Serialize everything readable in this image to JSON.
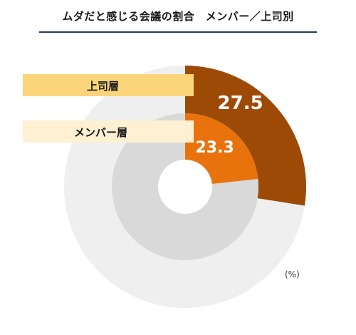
{
  "title": "ムダだと感じる会議の割合　メンバー／上司別",
  "unit": "(%)",
  "colors": {
    "manager": "#9e4a07",
    "member": "#e8720c",
    "outer_remainder": "#efefef",
    "inner_remainder": "#d9d9d9",
    "manager_label_bg": "#fcd47a",
    "member_label_bg": "#fef0d2"
  },
  "chart_data": {
    "type": "pie",
    "subtype": "nested-donut",
    "title": "ムダだと感じる会議の割合　メンバー／上司別",
    "unit": "%",
    "series": [
      {
        "name": "上司層",
        "ring": "outer",
        "value": 27.5,
        "total": 100
      },
      {
        "name": "メンバー層",
        "ring": "inner",
        "value": 23.3,
        "total": 100
      }
    ],
    "value_labels": [
      "27.5",
      "23.3"
    ],
    "legend": [
      "上司層",
      "メンバー層"
    ]
  }
}
